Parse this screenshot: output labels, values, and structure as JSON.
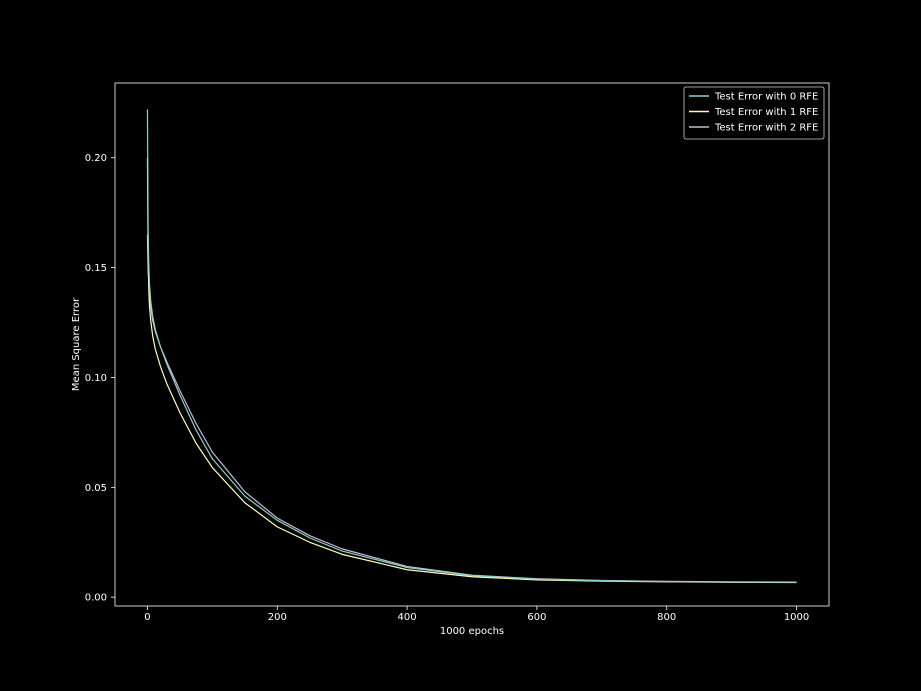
{
  "chart_data": {
    "type": "line",
    "title": "",
    "xlabel": "1000 epochs",
    "ylabel": "Mean Square Error",
    "xlim": [
      -50,
      1050
    ],
    "ylim": [
      -0.004,
      0.234
    ],
    "x_ticks": [
      0,
      200,
      400,
      600,
      800,
      1000
    ],
    "x_tick_labels": [
      "0",
      "200",
      "400",
      "600",
      "800",
      "1000"
    ],
    "y_ticks": [
      0.0,
      0.05,
      0.1,
      0.15,
      0.2
    ],
    "y_tick_labels": [
      "0.00",
      "0.05",
      "0.10",
      "0.15",
      "0.20"
    ],
    "grid": false,
    "legend_position": "top-right",
    "background": "#000000",
    "series": [
      {
        "name": "Test Error with 0 RFE",
        "color": "#8dd3c7",
        "x": [
          0,
          1,
          2,
          3,
          5,
          8,
          12,
          20,
          30,
          50,
          75,
          100,
          150,
          200,
          250,
          300,
          400,
          500,
          600,
          700,
          800,
          900,
          1000
        ],
        "y": [
          0.222,
          0.168,
          0.152,
          0.143,
          0.135,
          0.128,
          0.122,
          0.114,
          0.106,
          0.092,
          0.076,
          0.063,
          0.046,
          0.035,
          0.027,
          0.021,
          0.0135,
          0.0098,
          0.0082,
          0.0075,
          0.0071,
          0.0069,
          0.0068
        ]
      },
      {
        "name": "Test Error with 1 RFE",
        "color": "#feffb3",
        "x": [
          0,
          1,
          2,
          3,
          5,
          8,
          12,
          20,
          30,
          50,
          75,
          100,
          150,
          200,
          250,
          300,
          400,
          500,
          600,
          700,
          800,
          900,
          1000
        ],
        "y": [
          0.2,
          0.155,
          0.141,
          0.133,
          0.126,
          0.119,
          0.113,
          0.105,
          0.097,
          0.084,
          0.07,
          0.059,
          0.043,
          0.032,
          0.025,
          0.0195,
          0.0125,
          0.0093,
          0.0079,
          0.0073,
          0.007,
          0.0068,
          0.0067
        ]
      },
      {
        "name": "Test Error with 2 RFE",
        "color": "#bfbbd9",
        "x": [
          0,
          1,
          2,
          3,
          5,
          8,
          12,
          20,
          30,
          50,
          75,
          100,
          150,
          200,
          250,
          300,
          400,
          500,
          600,
          700,
          800,
          900,
          1000
        ],
        "y": [
          0.165,
          0.15,
          0.143,
          0.138,
          0.132,
          0.126,
          0.121,
          0.114,
          0.107,
          0.094,
          0.079,
          0.066,
          0.048,
          0.036,
          0.028,
          0.022,
          0.014,
          0.01,
          0.0084,
          0.0076,
          0.0072,
          0.007,
          0.0069
        ]
      }
    ]
  }
}
